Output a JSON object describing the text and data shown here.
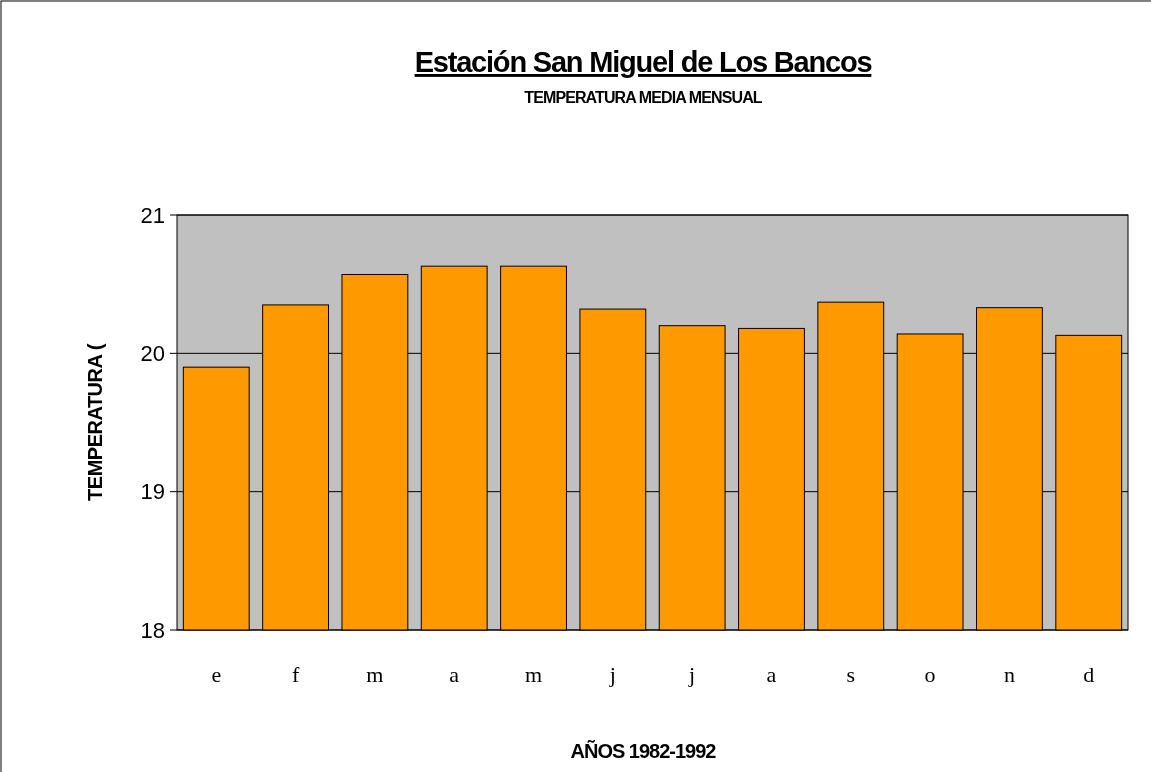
{
  "chart_data": {
    "type": "bar",
    "title": "Estación San Miguel de Los Bancos",
    "subtitle": "TEMPERATURA MEDIA MENSUAL",
    "xlabel": "AÑOS 1982-1992",
    "ylabel": "TEMPERATURA (",
    "categories": [
      "e",
      "f",
      "m",
      "a",
      "m",
      "j",
      "j",
      "a",
      "s",
      "o",
      "n",
      "d"
    ],
    "values": [
      19.9,
      20.35,
      20.57,
      20.63,
      20.63,
      20.32,
      20.2,
      20.18,
      20.37,
      20.14,
      20.33,
      20.13
    ],
    "color": "#ff9900",
    "ylim": [
      18,
      21
    ],
    "yticks": [
      18,
      19,
      20,
      21
    ],
    "grid": "y"
  }
}
